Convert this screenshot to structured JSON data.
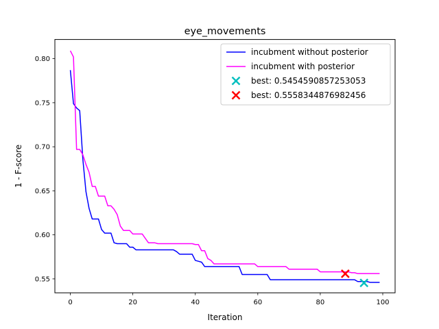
{
  "chart_data": {
    "type": "line",
    "title": "eye_movements",
    "xlabel": "Iteration",
    "ylabel": "1 - F-score",
    "xlim": [
      -4.95,
      103.95
    ],
    "ylim": [
      0.5342,
      0.8218
    ],
    "xticks": [
      0,
      20,
      40,
      60,
      80,
      100
    ],
    "xtick_labels": [
      "0",
      "20",
      "40",
      "60",
      "80",
      "100"
    ],
    "yticks": [
      0.55,
      0.6,
      0.65,
      0.7,
      0.75,
      0.8
    ],
    "ytick_labels": [
      "0.55",
      "0.60",
      "0.65",
      "0.70",
      "0.75",
      "0.80"
    ],
    "grid": false,
    "legend_position": "upper right",
    "series": [
      {
        "name": "incubment without posterior",
        "color": "#0000ff",
        "x": [
          0,
          1,
          2,
          3,
          4,
          5,
          6,
          7,
          8,
          9,
          10,
          11,
          12,
          13,
          14,
          15,
          16,
          17,
          18,
          19,
          20,
          21,
          22,
          23,
          24,
          25,
          26,
          27,
          28,
          29,
          30,
          31,
          32,
          33,
          34,
          35,
          36,
          37,
          38,
          39,
          40,
          41,
          42,
          43,
          44,
          45,
          46,
          47,
          48,
          49,
          50,
          51,
          52,
          53,
          54,
          55,
          56,
          57,
          58,
          59,
          60,
          61,
          62,
          63,
          64,
          65,
          66,
          67,
          68,
          69,
          70,
          71,
          72,
          73,
          74,
          75,
          76,
          77,
          78,
          79,
          80,
          81,
          82,
          83,
          84,
          85,
          86,
          87,
          88,
          89,
          90,
          91,
          92,
          93,
          94,
          95,
          96,
          97,
          98,
          99
        ],
        "y": [
          0.787,
          0.749,
          0.744,
          0.741,
          0.686,
          0.649,
          0.63,
          0.618,
          0.618,
          0.618,
          0.606,
          0.602,
          0.602,
          0.602,
          0.591,
          0.59,
          0.59,
          0.59,
          0.59,
          0.586,
          0.586,
          0.583,
          0.583,
          0.583,
          0.583,
          0.583,
          0.583,
          0.583,
          0.583,
          0.583,
          0.583,
          0.583,
          0.583,
          0.583,
          0.581,
          0.578,
          0.578,
          0.578,
          0.578,
          0.578,
          0.571,
          0.57,
          0.569,
          0.564,
          0.564,
          0.564,
          0.564,
          0.564,
          0.564,
          0.564,
          0.564,
          0.564,
          0.564,
          0.564,
          0.564,
          0.555,
          0.555,
          0.555,
          0.555,
          0.555,
          0.555,
          0.555,
          0.555,
          0.555,
          0.549,
          0.549,
          0.549,
          0.549,
          0.549,
          0.549,
          0.549,
          0.549,
          0.549,
          0.549,
          0.549,
          0.549,
          0.549,
          0.549,
          0.549,
          0.549,
          0.549,
          0.549,
          0.549,
          0.549,
          0.549,
          0.549,
          0.549,
          0.549,
          0.549,
          0.549,
          0.549,
          0.549,
          0.547,
          0.547,
          0.547,
          0.547,
          0.546,
          0.546,
          0.546,
          0.546
        ]
      },
      {
        "name": "incubment with posterior",
        "color": "#ff00ff",
        "x": [
          0,
          1,
          2,
          3,
          4,
          5,
          6,
          7,
          8,
          9,
          10,
          11,
          12,
          13,
          14,
          15,
          16,
          17,
          18,
          19,
          20,
          21,
          22,
          23,
          24,
          25,
          26,
          27,
          28,
          29,
          30,
          31,
          32,
          33,
          34,
          35,
          36,
          37,
          38,
          39,
          40,
          41,
          42,
          43,
          44,
          45,
          46,
          47,
          48,
          49,
          50,
          51,
          52,
          53,
          54,
          55,
          56,
          57,
          58,
          59,
          60,
          61,
          62,
          63,
          64,
          65,
          66,
          67,
          68,
          69,
          70,
          71,
          72,
          73,
          74,
          75,
          76,
          77,
          78,
          79,
          80,
          81,
          82,
          83,
          84,
          85,
          86,
          87,
          88,
          89,
          90,
          91,
          92,
          93,
          94,
          95,
          96,
          97,
          98,
          99
        ],
        "y": [
          0.809,
          0.802,
          0.697,
          0.697,
          0.691,
          0.68,
          0.671,
          0.655,
          0.655,
          0.644,
          0.644,
          0.644,
          0.633,
          0.633,
          0.629,
          0.623,
          0.61,
          0.605,
          0.605,
          0.605,
          0.601,
          0.601,
          0.601,
          0.601,
          0.596,
          0.591,
          0.591,
          0.591,
          0.59,
          0.59,
          0.59,
          0.59,
          0.59,
          0.59,
          0.59,
          0.59,
          0.59,
          0.59,
          0.59,
          0.59,
          0.589,
          0.589,
          0.582,
          0.582,
          0.573,
          0.571,
          0.567,
          0.567,
          0.567,
          0.567,
          0.567,
          0.567,
          0.567,
          0.567,
          0.567,
          0.567,
          0.567,
          0.567,
          0.567,
          0.567,
          0.564,
          0.564,
          0.564,
          0.564,
          0.564,
          0.564,
          0.564,
          0.564,
          0.564,
          0.564,
          0.561,
          0.561,
          0.561,
          0.561,
          0.561,
          0.561,
          0.561,
          0.561,
          0.561,
          0.561,
          0.558,
          0.558,
          0.558,
          0.558,
          0.558,
          0.558,
          0.558,
          0.558,
          0.558,
          0.558,
          0.557,
          0.557,
          0.556,
          0.556,
          0.556,
          0.556,
          0.556,
          0.556,
          0.556,
          0.556
        ]
      }
    ],
    "markers": [
      {
        "name": "best: 0.5454590857253053",
        "color": "#00bfbf",
        "symbol": "x",
        "x": 94,
        "y": 0.5454590857253053
      },
      {
        "name": "best: 0.5558344876982456",
        "color": "#ff0000",
        "symbol": "x",
        "x": 88,
        "y": 0.5558344876982456
      }
    ]
  }
}
